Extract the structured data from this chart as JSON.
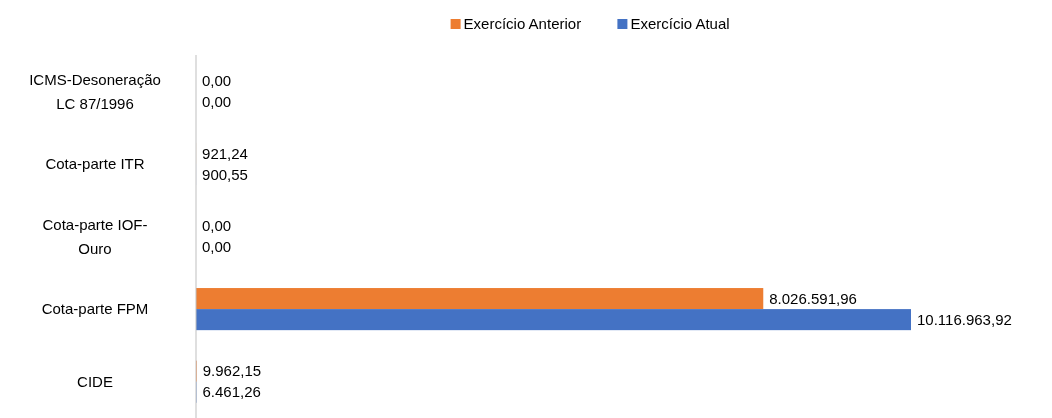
{
  "chart_data": {
    "type": "bar",
    "orientation": "horizontal",
    "legend": "top",
    "categories": [
      "ICMS-Desoneração LC 87/1996",
      "Cota-parte ITR",
      "Cota-parte IOF-Ouro",
      "Cota-parte FPM",
      "CIDE"
    ],
    "series": [
      {
        "name": "Exercício Anterior",
        "color": "#ed7d31",
        "values": [
          0,
          921.24,
          0,
          8026591.96,
          9962.15
        ],
        "value_labels": [
          "0,00",
          "921,24",
          "0,00",
          "8.026.591,96",
          "9.962,15"
        ]
      },
      {
        "name": "Exercício Atual",
        "color": "#4472c4",
        "values": [
          0,
          900.55,
          0,
          10116963.92,
          6461.26
        ],
        "value_labels": [
          "0,00",
          "900,55",
          "0,00",
          "10.116.963,92",
          "6.461,26"
        ]
      }
    ]
  }
}
